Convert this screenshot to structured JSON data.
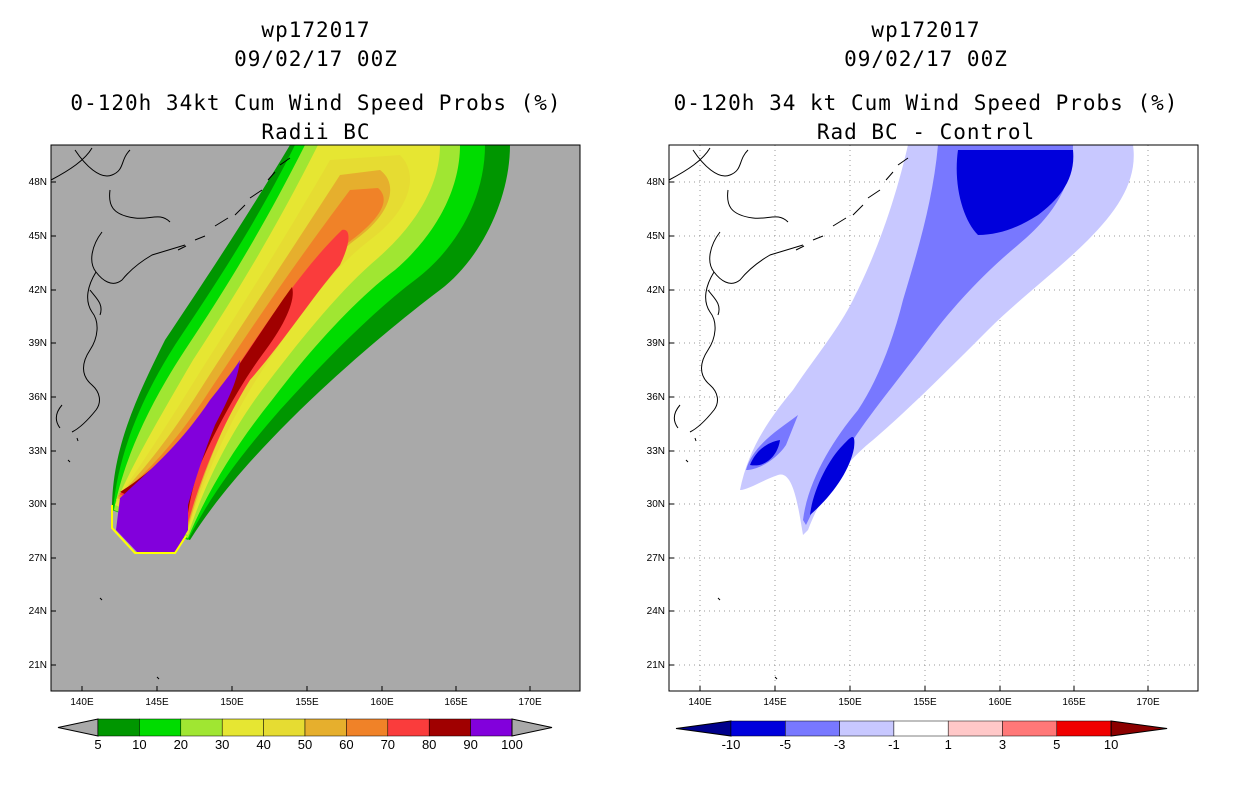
{
  "left": {
    "title_line1": "wp172017",
    "title_line2": "09/02/17 00Z",
    "title_line3": "0-120h 34kt Cum Wind Speed Probs (%)",
    "title_line4": "Radii BC",
    "lat_labels": [
      "48N",
      "45N",
      "42N",
      "39N",
      "36N",
      "33N",
      "30N",
      "27N",
      "24N",
      "21N"
    ],
    "lon_labels": [
      "140E",
      "145E",
      "150E",
      "155E",
      "160E",
      "165E",
      "170E"
    ],
    "colorbar_labels": [
      "5",
      "10",
      "20",
      "30",
      "40",
      "50",
      "60",
      "70",
      "80",
      "90",
      "100"
    ],
    "colorbar_colors": [
      "#009600",
      "#00dc00",
      "#a0e632",
      "#e6e632",
      "#e6dc32",
      "#e6af2d",
      "#f08228",
      "#fa3c3c",
      "#a00000",
      "#8200dc"
    ],
    "background_color": "#a9a9a9"
  },
  "right": {
    "title_line1": "wp172017",
    "title_line2": "09/02/17 00Z",
    "title_line3": "0-120h 34 kt Cum Wind Speed Probs (%)",
    "title_line4": "Rad BC - Control",
    "lat_labels": [
      "48N",
      "45N",
      "42N",
      "39N",
      "36N",
      "33N",
      "30N",
      "27N",
      "24N",
      "21N"
    ],
    "lon_labels": [
      "140E",
      "145E",
      "150E",
      "155E",
      "160E",
      "165E",
      "170E"
    ],
    "colorbar_labels": [
      "-10",
      "-5",
      "-3",
      "-1",
      "1",
      "3",
      "5",
      "10"
    ],
    "colorbar_colors": [
      "#0000dc",
      "#7878ff",
      "#c8c8ff",
      "#ffffff",
      "#ffc8c8",
      "#ff7878",
      "#f00000"
    ],
    "arrow_left_color": "#00008c",
    "arrow_right_color": "#8c0000"
  }
}
